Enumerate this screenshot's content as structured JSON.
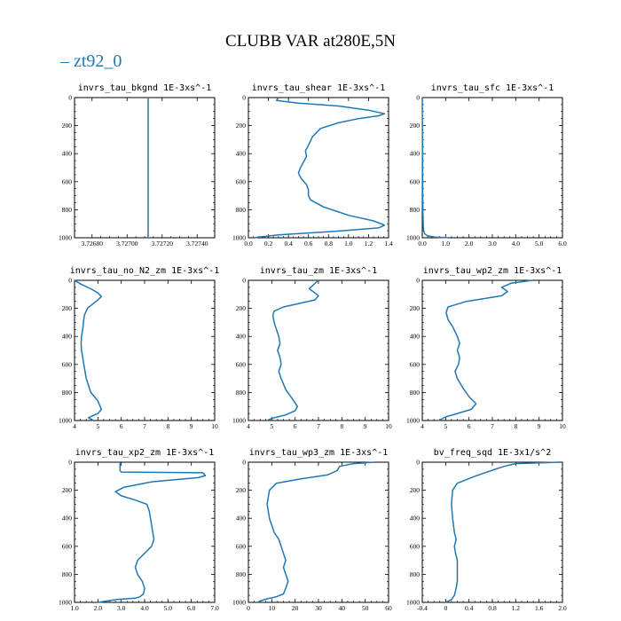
{
  "title": "CLUBB VAR at280E,5N",
  "legend": {
    "label": "zt92_0",
    "color": "#1f77b4"
  },
  "chart_data": [
    {
      "type": "line",
      "title": "invrs_tau_bkgnd   1E-3xs^-1",
      "xlim": [
        3.7267,
        3.7275
      ],
      "xticks": [
        "3.72680",
        "3.72700",
        "3.72720",
        "3.72740"
      ],
      "xtick_values": [
        3.7268,
        3.727,
        3.7272,
        3.7274
      ],
      "ylim": [
        0,
        1000
      ],
      "yticks": [
        "0",
        "200",
        "400",
        "600",
        "800",
        "1000"
      ],
      "series": [
        {
          "color": "#1f77b4",
          "x": [
            3.72712,
            3.72712
          ],
          "y": [
            0,
            1000
          ]
        }
      ]
    },
    {
      "type": "line",
      "title": "invrs_tau_shear   1E-3xs^-1",
      "xlim": [
        0,
        1.4
      ],
      "xticks": [
        "0.0",
        "0.2",
        "0.4",
        "0.6",
        "0.8",
        "1.0",
        "1.2",
        "1.4"
      ],
      "xtick_values": [
        0,
        0.2,
        0.4,
        0.6,
        0.8,
        1.0,
        1.2,
        1.4
      ],
      "ylim": [
        0,
        1000
      ],
      "yticks": [
        "0",
        "200",
        "400",
        "600",
        "800",
        "1000"
      ],
      "series": [
        {
          "color": "#1f77b4",
          "x": [
            0.3,
            0.28,
            0.5,
            0.9,
            1.2,
            1.36,
            1.3,
            1.1,
            0.9,
            0.72,
            0.64,
            0.6,
            0.57,
            0.58,
            0.55,
            0.52,
            0.5,
            0.53,
            0.58,
            0.6,
            0.6,
            0.62,
            0.75,
            1.0,
            1.25,
            1.36,
            1.3,
            0.85,
            0.3,
            0.05
          ],
          "y": [
            0,
            20,
            40,
            60,
            90,
            115,
            130,
            150,
            180,
            220,
            280,
            340,
            380,
            420,
            460,
            500,
            540,
            580,
            620,
            660,
            700,
            730,
            780,
            840,
            880,
            910,
            930,
            955,
            980,
            1000
          ]
        }
      ]
    },
    {
      "type": "line",
      "title": "invrs_tau_sfc   1E-3xs^-1",
      "xlim": [
        0,
        6.0
      ],
      "xticks": [
        "0.0",
        "1.0",
        "2.0",
        "3.0",
        "4.0",
        "5.0",
        "6.0"
      ],
      "xtick_values": [
        0,
        1,
        2,
        3,
        4,
        5,
        6
      ],
      "ylim": [
        0,
        1000
      ],
      "yticks": [
        "0",
        "200",
        "400",
        "600",
        "800",
        "1000"
      ],
      "series": [
        {
          "color": "#1f77b4",
          "x": [
            0.0,
            0.01,
            0.02,
            0.03,
            0.04,
            0.06,
            0.1,
            0.2,
            0.5,
            1.2
          ],
          "y": [
            0,
            400,
            700,
            850,
            920,
            950,
            970,
            985,
            995,
            1000
          ]
        }
      ]
    },
    {
      "type": "line",
      "title": "invrs_tau_no_N2_zm   1E-3xs^-1",
      "xlim": [
        4,
        10
      ],
      "xticks": [
        "4",
        "5",
        "6",
        "7",
        "8",
        "9",
        "10"
      ],
      "xtick_values": [
        4,
        5,
        6,
        7,
        8,
        9,
        10
      ],
      "ylim": [
        0,
        1000
      ],
      "yticks": [
        "0",
        "200",
        "400",
        "600",
        "800",
        "1000"
      ],
      "series": [
        {
          "color": "#1f77b4",
          "x": [
            4.0,
            4.3,
            4.7,
            5.0,
            5.15,
            5.0,
            4.55,
            4.42,
            4.38,
            4.35,
            4.3,
            4.28,
            4.3,
            4.35,
            4.4,
            4.5,
            4.7,
            5.0,
            5.15,
            5.0,
            4.6,
            4.8
          ],
          "y": [
            0,
            30,
            60,
            90,
            115,
            140,
            200,
            250,
            300,
            350,
            400,
            450,
            500,
            550,
            600,
            700,
            800,
            860,
            920,
            950,
            980,
            1000
          ]
        }
      ]
    },
    {
      "type": "line",
      "title": "invrs_tau_zm   1E-3xs^-1",
      "xlim": [
        4,
        10
      ],
      "xticks": [
        "4",
        "5",
        "6",
        "7",
        "8",
        "9",
        "10"
      ],
      "xtick_values": [
        4,
        5,
        6,
        7,
        8,
        9,
        10
      ],
      "ylim": [
        0,
        1000
      ],
      "yticks": [
        "0",
        "200",
        "400",
        "600",
        "800",
        "1000"
      ],
      "series": [
        {
          "color": "#1f77b4",
          "x": [
            7.0,
            6.8,
            6.6,
            6.85,
            7.0,
            6.85,
            5.5,
            5.1,
            5.05,
            5.1,
            5.2,
            5.3,
            5.35,
            5.25,
            5.35,
            5.4,
            5.3,
            5.4,
            5.6,
            5.9,
            6.1,
            6.0,
            5.6,
            5.0,
            4.8
          ],
          "y": [
            0,
            30,
            60,
            90,
            110,
            140,
            190,
            220,
            250,
            300,
            350,
            400,
            450,
            500,
            550,
            600,
            650,
            700,
            780,
            850,
            900,
            930,
            960,
            985,
            1000
          ]
        }
      ]
    },
    {
      "type": "line",
      "title": "invrs_tau_wp2_zm   1E-3xs^-1",
      "xlim": [
        4,
        10
      ],
      "xticks": [
        "4",
        "5",
        "6",
        "7",
        "8",
        "9",
        "10"
      ],
      "xtick_values": [
        4,
        5,
        6,
        7,
        8,
        9,
        10
      ],
      "ylim": [
        0,
        1000
      ],
      "yticks": [
        "0",
        "200",
        "400",
        "600",
        "800",
        "1000"
      ],
      "series": [
        {
          "color": "#1f77b4",
          "x": [
            8.7,
            7.8,
            7.4,
            7.65,
            7.4,
            5.9,
            5.1,
            5.02,
            5.1,
            5.3,
            5.5,
            5.6,
            5.5,
            5.6,
            5.55,
            5.4,
            5.5,
            5.75,
            6.0,
            6.3,
            6.1,
            5.5,
            5.0,
            4.7
          ],
          "y": [
            0,
            20,
            50,
            80,
            110,
            150,
            190,
            230,
            280,
            330,
            400,
            450,
            500,
            550,
            600,
            650,
            700,
            770,
            830,
            880,
            920,
            950,
            975,
            1000
          ]
        }
      ]
    },
    {
      "type": "line",
      "title": "invrs_tau_xp2_zm   1E-3xs^-1",
      "xlim": [
        1.0,
        7.0
      ],
      "xticks": [
        "1.0",
        "2.0",
        "3.0",
        "4.0",
        "5.0",
        "6.0",
        "7.0"
      ],
      "xtick_values": [
        1,
        2,
        3,
        4,
        5,
        6,
        7
      ],
      "ylim": [
        0,
        1000
      ],
      "yticks": [
        "0",
        "200",
        "400",
        "600",
        "800",
        "1000"
      ],
      "series": [
        {
          "color": "#1f77b4",
          "x": [
            2.95,
            2.95,
            3.0,
            6.5,
            6.6,
            6.3,
            5.6,
            4.3,
            3.1,
            2.75,
            3.0,
            3.6,
            4.1,
            4.2,
            4.25,
            4.4,
            4.3,
            4.0,
            3.7,
            3.6,
            3.7,
            3.9,
            4.0,
            3.95,
            3.8,
            3.6,
            2.8,
            2.0
          ],
          "y": [
            0,
            60,
            70,
            75,
            95,
            110,
            120,
            140,
            180,
            210,
            240,
            270,
            300,
            350,
            400,
            550,
            600,
            650,
            700,
            750,
            800,
            850,
            900,
            940,
            960,
            970,
            980,
            1000
          ]
        }
      ]
    },
    {
      "type": "line",
      "title": "invrs_tau_wp3_zm   1E-3xs^-1",
      "xlim": [
        0,
        60
      ],
      "xticks": [
        "0",
        "10",
        "20",
        "30",
        "40",
        "50",
        "60"
      ],
      "xtick_values": [
        0,
        10,
        20,
        30,
        40,
        50,
        60
      ],
      "ylim": [
        0,
        1000
      ],
      "yticks": [
        "0",
        "200",
        "400",
        "600",
        "800",
        "1000"
      ],
      "series": [
        {
          "color": "#1f77b4",
          "x": [
            54,
            45,
            39,
            38,
            34,
            22,
            12,
            9,
            8,
            9,
            11,
            13,
            14,
            15,
            16,
            15,
            16,
            17,
            16,
            15,
            12,
            8,
            5,
            4
          ],
          "y": [
            0,
            10,
            30,
            60,
            90,
            120,
            150,
            200,
            300,
            400,
            500,
            550,
            600,
            650,
            700,
            750,
            800,
            850,
            900,
            940,
            960,
            975,
            990,
            1000
          ]
        }
      ]
    },
    {
      "type": "line",
      "title": "bv_freq_sqd   1E-3x1/s^2",
      "xlim": [
        -0.4,
        2.0
      ],
      "xticks": [
        "-0.4",
        "0",
        "0.4",
        "0.8",
        "1.2",
        "1.6",
        "2.0"
      ],
      "xtick_values": [
        -0.4,
        0,
        0.4,
        0.8,
        1.2,
        1.6,
        2.0
      ],
      "ylim": [
        0,
        1000
      ],
      "yticks": [
        "0",
        "200",
        "400",
        "600",
        "800",
        "1000"
      ],
      "series": [
        {
          "color": "#1f77b4",
          "x": [
            1.95,
            1.2,
            1.0,
            0.85,
            0.5,
            0.2,
            0.12,
            0.1,
            0.12,
            0.15,
            0.18,
            0.15,
            0.17,
            0.2,
            0.2,
            0.2,
            0.18,
            0.15,
            0.1,
            0.0
          ],
          "y": [
            0,
            10,
            30,
            50,
            100,
            150,
            200,
            300,
            400,
            500,
            550,
            600,
            650,
            700,
            800,
            850,
            900,
            950,
            980,
            1000
          ]
        }
      ]
    }
  ]
}
